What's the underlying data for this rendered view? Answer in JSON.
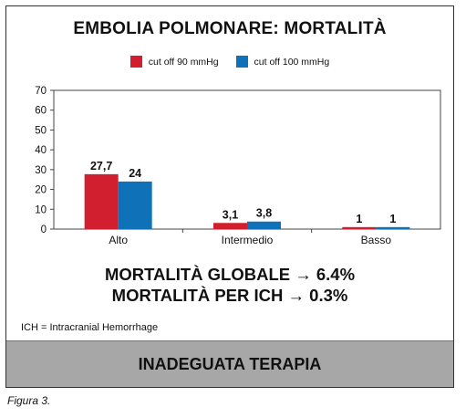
{
  "title": "EMBOLIA POLMONARE: MORTALITÀ",
  "chart_data": {
    "type": "bar",
    "title": "EMBOLIA POLMONARE: MORTALITÀ",
    "categories": [
      "Alto",
      "Intermedio",
      "Basso"
    ],
    "series": [
      {
        "name": "cut off 90 mmHg",
        "values": [
          27.7,
          3.1,
          1
        ],
        "labels": [
          "27,7",
          "3,1",
          "1"
        ],
        "color": "#d11f2f"
      },
      {
        "name": "cut off 100 mmHg",
        "values": [
          24,
          3.8,
          1
        ],
        "labels": [
          "24",
          "3,8",
          "1"
        ],
        "color": "#0f72b8"
      }
    ],
    "ylim": [
      0,
      70
    ],
    "yticks": [
      0,
      10,
      20,
      30,
      40,
      50,
      60,
      70
    ],
    "grid": false,
    "legend": "top-center"
  },
  "summary": {
    "line1": "MORTALITÀ GLOBALE → 6.4%",
    "line2": "MORTALITÀ PER ICH → 0.3%"
  },
  "note": "ICH = Intracranial Hemorrhage",
  "banner": "INADEGUATA TERAPIA",
  "caption": "Figura 3."
}
